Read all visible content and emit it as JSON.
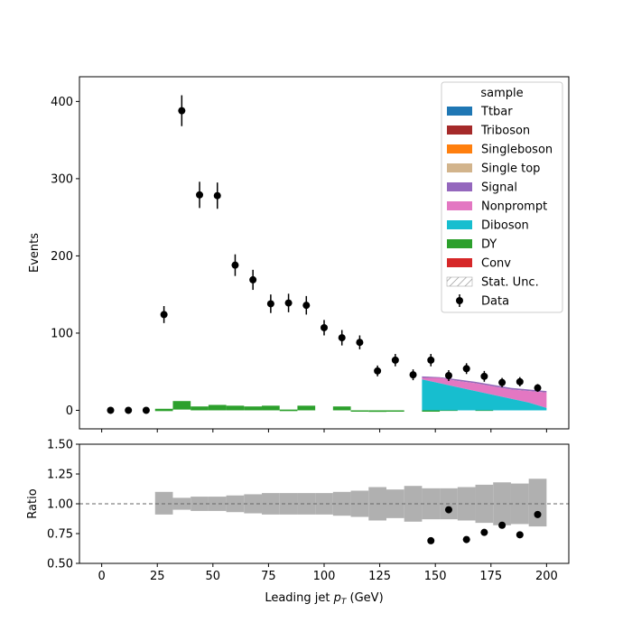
{
  "chart_data": [
    {
      "type": "bar",
      "panel": "main",
      "xlabel": "",
      "ylabel": "Events",
      "xlim": [
        -10,
        210
      ],
      "ylim": [
        -24,
        432
      ],
      "yticks": [
        0,
        100,
        200,
        300,
        400
      ],
      "grid": false,
      "legend": {
        "title": "sample",
        "placement": "top-right",
        "entries": [
          {
            "name": "Ttbar",
            "color": "#1f77b4",
            "kind": "patch"
          },
          {
            "name": "Triboson",
            "color": "#a52a2a",
            "kind": "patch"
          },
          {
            "name": "Singleboson",
            "color": "#ff7f0e",
            "kind": "patch"
          },
          {
            "name": "Single top",
            "color": "#d2b48c",
            "kind": "patch"
          },
          {
            "name": "Signal",
            "color": "#9467bd",
            "kind": "patch"
          },
          {
            "name": "Nonprompt",
            "color": "#e377c2",
            "kind": "patch"
          },
          {
            "name": "Diboson",
            "color": "#17becf",
            "kind": "patch"
          },
          {
            "name": "DY",
            "color": "#2ca02c",
            "kind": "patch"
          },
          {
            "name": "Conv",
            "color": "#d62728",
            "kind": "patch"
          },
          {
            "name": "Stat. Unc.",
            "color": "#888888",
            "kind": "hatch"
          },
          {
            "name": "Data",
            "color": "#000000",
            "kind": "point"
          }
        ]
      },
      "dy_bins": [
        {
          "x0": 24,
          "x1": 32,
          "lo": -1,
          "hi": 2
        },
        {
          "x0": 32,
          "x1": 40,
          "lo": 1,
          "hi": 12
        },
        {
          "x0": 40,
          "x1": 48,
          "lo": 0,
          "hi": 5
        },
        {
          "x0": 48,
          "x1": 56,
          "lo": 0,
          "hi": 7
        },
        {
          "x0": 56,
          "x1": 64,
          "lo": 0,
          "hi": 6
        },
        {
          "x0": 64,
          "x1": 72,
          "lo": 0,
          "hi": 5
        },
        {
          "x0": 72,
          "x1": 80,
          "lo": 0,
          "hi": 6
        },
        {
          "x0": 80,
          "x1": 88,
          "lo": -1,
          "hi": 1
        },
        {
          "x0": 88,
          "x1": 96,
          "lo": 0,
          "hi": 6
        },
        {
          "x0": 104,
          "x1": 112,
          "lo": 0,
          "hi": 5
        },
        {
          "x0": 112,
          "x1": 120,
          "lo": -1,
          "hi": 0
        },
        {
          "x0": 120,
          "x1": 128,
          "lo": -2,
          "hi": 0
        },
        {
          "x0": 128,
          "x1": 136,
          "lo": -1,
          "hi": 0
        },
        {
          "x0": 144,
          "x1": 152,
          "lo": -1,
          "hi": 0
        },
        {
          "x0": 152,
          "x1": 160,
          "lo": 0,
          "hi": 1
        },
        {
          "x0": 168,
          "x1": 176,
          "lo": 0,
          "hi": 1
        }
      ],
      "stack_region": {
        "x": [
          144,
          152,
          160,
          168,
          176,
          184,
          192,
          200
        ],
        "diboson": [
          40,
          35,
          30,
          25,
          20,
          15,
          10,
          3
        ],
        "signal_top": [
          44,
          43,
          40,
          37,
          33,
          29,
          27,
          25
        ],
        "nonprompt_top": [
          42,
          42,
          38,
          35,
          31,
          27,
          25,
          23
        ]
      },
      "data": {
        "x": [
          4,
          12,
          20,
          28,
          36,
          44,
          52,
          60,
          68,
          76,
          84,
          92,
          100,
          108,
          116,
          124,
          132,
          140,
          148,
          156,
          164,
          172,
          180,
          188,
          196
        ],
        "y": [
          0,
          0,
          0,
          124,
          388,
          279,
          278,
          188,
          169,
          138,
          139,
          136,
          107,
          94,
          88,
          51,
          65,
          46,
          65,
          45,
          54,
          44,
          36,
          37,
          29
        ],
        "err": [
          0,
          0,
          0,
          11,
          20,
          17,
          17,
          14,
          13,
          12,
          12,
          12,
          10,
          10,
          9,
          7,
          8,
          7,
          8,
          7,
          7,
          7,
          6,
          6,
          5
        ]
      }
    },
    {
      "type": "scatter",
      "panel": "ratio",
      "xlabel": "Leading jet  p_T (GeV)",
      "ylabel": "Ratio",
      "xlim": [
        -10,
        210
      ],
      "ylim": [
        0.5,
        1.5
      ],
      "xticks": [
        0,
        25,
        50,
        75,
        100,
        125,
        150,
        175,
        200
      ],
      "yticks": [
        0.5,
        0.75,
        1.0,
        1.25,
        1.5
      ],
      "ytick_labels": [
        "0.50",
        "0.75",
        "1.00",
        "1.25",
        "1.50"
      ],
      "reference_line": 1.0,
      "unc_band": [
        {
          "x0": 24,
          "x1": 32,
          "lo": 0.91,
          "hi": 1.1
        },
        {
          "x0": 32,
          "x1": 40,
          "lo": 0.95,
          "hi": 1.05
        },
        {
          "x0": 40,
          "x1": 48,
          "lo": 0.94,
          "hi": 1.06
        },
        {
          "x0": 48,
          "x1": 56,
          "lo": 0.94,
          "hi": 1.06
        },
        {
          "x0": 56,
          "x1": 64,
          "lo": 0.93,
          "hi": 1.07
        },
        {
          "x0": 64,
          "x1": 72,
          "lo": 0.92,
          "hi": 1.08
        },
        {
          "x0": 72,
          "x1": 80,
          "lo": 0.91,
          "hi": 1.09
        },
        {
          "x0": 80,
          "x1": 88,
          "lo": 0.91,
          "hi": 1.09
        },
        {
          "x0": 88,
          "x1": 96,
          "lo": 0.91,
          "hi": 1.09
        },
        {
          "x0": 96,
          "x1": 104,
          "lo": 0.91,
          "hi": 1.09
        },
        {
          "x0": 104,
          "x1": 112,
          "lo": 0.9,
          "hi": 1.1
        },
        {
          "x0": 112,
          "x1": 120,
          "lo": 0.89,
          "hi": 1.11
        },
        {
          "x0": 120,
          "x1": 128,
          "lo": 0.86,
          "hi": 1.14
        },
        {
          "x0": 128,
          "x1": 136,
          "lo": 0.88,
          "hi": 1.12
        },
        {
          "x0": 136,
          "x1": 144,
          "lo": 0.85,
          "hi": 1.15
        },
        {
          "x0": 144,
          "x1": 152,
          "lo": 0.87,
          "hi": 1.13
        },
        {
          "x0": 152,
          "x1": 160,
          "lo": 0.87,
          "hi": 1.13
        },
        {
          "x0": 160,
          "x1": 168,
          "lo": 0.86,
          "hi": 1.14
        },
        {
          "x0": 168,
          "x1": 176,
          "lo": 0.84,
          "hi": 1.16
        },
        {
          "x0": 176,
          "x1": 184,
          "lo": 0.82,
          "hi": 1.18
        },
        {
          "x0": 184,
          "x1": 192,
          "lo": 0.83,
          "hi": 1.17
        },
        {
          "x0": 192,
          "x1": 200,
          "lo": 0.81,
          "hi": 1.21
        }
      ],
      "points": {
        "x": [
          148,
          156,
          164,
          172,
          180,
          188,
          196
        ],
        "y": [
          0.69,
          0.95,
          0.7,
          0.76,
          0.82,
          0.74,
          0.91
        ]
      }
    }
  ]
}
